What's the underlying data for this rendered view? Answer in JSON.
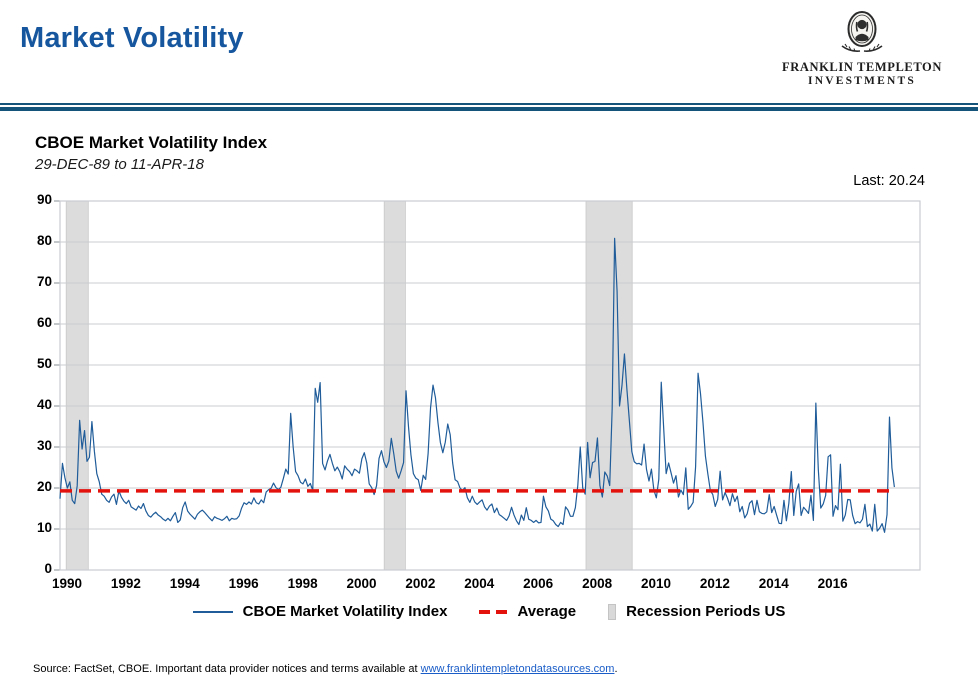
{
  "header": {
    "title": "Market Volatility",
    "logo": {
      "line1": "FRANKLIN TEMPLETON",
      "line2": "INVESTMENTS"
    }
  },
  "chart": {
    "title": "CBOE Market Volatility Index",
    "subtitle": "29-DEC-89 to 11-APR-18",
    "last_label": "Last: 20.24"
  },
  "footer": {
    "source_prefix": "Source: FactSet, CBOE. Important data provider notices and terms available at ",
    "source_link": "www.franklintempletondatasources.com",
    "source_suffix": "."
  },
  "colors": {
    "title_blue": "#15569e",
    "rule_blue": "#14537a",
    "grid_gray": "#c9ccd0",
    "tick_gray": "#8a8f94",
    "link_blue": "#1a5dc8"
  },
  "chart_data": {
    "type": "line",
    "title": "CBOE Market Volatility Index",
    "date_range": "29-DEC-89 to 11-APR-18",
    "last_value": 20.24,
    "ylim": [
      0,
      90
    ],
    "y_ticks": [
      0,
      10,
      20,
      30,
      40,
      50,
      60,
      70,
      80,
      90
    ],
    "x_ticks": [
      1990,
      1992,
      1994,
      1996,
      1998,
      2000,
      2002,
      2004,
      2006,
      2008,
      2010,
      2012,
      2014,
      2016
    ],
    "grid": "horizontal-only",
    "x_start_year": 1989.99,
    "x_step_years": 0.08333,
    "series": [
      {
        "name": "CBOE Market Volatility Index",
        "color": "#1f5c99",
        "values": [
          17.4,
          26.0,
          22.5,
          20.0,
          21.5,
          17.0,
          16.2,
          20.5,
          36.5,
          29.5,
          34.0,
          26.5,
          27.5,
          36.2,
          29.0,
          23.5,
          21.5,
          18.5,
          18.0,
          17.0,
          16.5,
          17.8,
          18.5,
          16.0,
          19.3,
          17.8,
          16.8,
          16.2,
          17.0,
          15.4,
          15.0,
          14.6,
          15.6,
          15.0,
          16.2,
          14.4,
          13.3,
          12.9,
          13.6,
          14.1,
          13.4,
          13.0,
          12.4,
          12.0,
          12.6,
          12.0,
          13.1,
          14.0,
          11.6,
          12.2,
          15.2,
          16.6,
          14.4,
          13.6,
          13.0,
          12.4,
          13.6,
          14.2,
          14.6,
          14.0,
          13.3,
          12.6,
          12.0,
          13.0,
          12.6,
          12.4,
          12.1,
          12.5,
          13.1,
          12.0,
          12.6,
          12.4,
          12.5,
          13.2,
          15.1,
          16.4,
          16.0,
          16.6,
          16.1,
          17.6,
          16.4,
          16.1,
          17.1,
          16.4,
          19.0,
          19.6,
          19.9,
          21.2,
          20.1,
          19.6,
          20.2,
          22.3,
          24.6,
          23.4,
          38.2,
          30.0,
          24.0,
          23.0,
          21.4,
          21.0,
          22.2,
          20.4,
          21.1,
          19.4,
          44.3,
          40.9,
          45.7,
          26.0,
          24.4,
          26.6,
          28.2,
          26.0,
          24.2,
          25.1,
          24.0,
          22.2,
          25.4,
          24.6,
          24.0,
          23.0,
          24.6,
          24.2,
          23.6,
          27.1,
          28.6,
          26.1,
          21.0,
          20.1,
          18.4,
          20.6,
          27.2,
          29.1,
          26.4,
          25.0,
          26.6,
          32.1,
          28.4,
          24.1,
          22.4,
          24.2,
          26.2,
          43.7,
          35.0,
          28.1,
          23.5,
          22.4,
          22.0,
          19.4,
          23.1,
          22.1,
          28.4,
          39.6,
          45.1,
          42.0,
          36.0,
          31.1,
          28.6,
          31.2,
          35.6,
          33.0,
          26.1,
          22.0,
          21.6,
          20.0,
          19.4,
          20.1,
          17.6,
          16.5,
          18.0,
          16.6,
          16.0,
          16.6,
          17.1,
          15.4,
          14.6,
          15.6,
          16.1,
          14.0,
          15.1,
          13.5,
          13.1,
          12.6,
          12.1,
          13.2,
          15.3,
          13.4,
          12.0,
          11.1,
          13.4,
          12.1,
          15.2,
          12.4,
          12.1,
          11.6,
          12.1,
          11.5,
          11.6,
          18.0,
          15.4,
          14.4,
          12.4,
          12.0,
          11.1,
          10.6,
          11.6,
          11.1,
          15.4,
          14.6,
          13.1,
          13.1,
          15.2,
          20.7,
          30.0,
          20.0,
          18.5,
          31.1,
          22.5,
          26.2,
          26.5,
          32.2,
          20.6,
          17.8,
          23.9,
          22.9,
          20.6,
          39.4,
          80.9,
          68.0,
          40.0,
          45.0,
          52.7,
          44.1,
          36.5,
          28.9,
          26.4,
          25.9,
          26.0,
          25.6,
          30.7,
          24.5,
          21.7,
          24.6,
          19.5,
          17.6,
          22.1,
          45.8,
          34.5,
          23.5,
          26.1,
          23.7,
          21.2,
          23.0,
          17.8,
          19.5,
          18.4,
          24.9,
          14.8,
          15.5,
          16.5,
          25.2,
          48.0,
          43.0,
          36.0,
          27.8,
          23.4,
          19.4,
          18.4,
          15.5,
          17.2,
          24.1,
          17.1,
          18.9,
          17.5,
          15.7,
          18.6,
          16.7,
          18.0,
          14.2,
          15.5,
          12.7,
          13.7,
          16.3,
          16.9,
          13.5,
          17.0,
          14.2,
          13.8,
          13.7,
          14.2,
          18.4,
          14.0,
          15.5,
          13.4,
          11.4,
          11.3,
          17.0,
          12.0,
          16.3,
          24.0,
          13.3,
          19.2,
          21.0,
          13.3,
          15.3,
          14.6,
          13.8,
          18.2,
          12.1,
          40.7,
          24.5,
          15.1,
          16.1,
          18.2,
          27.6,
          28.1,
          13.1,
          15.7,
          14.7,
          25.8,
          11.9,
          13.4,
          17.2,
          17.1,
          13.3,
          11.3,
          11.8,
          11.5,
          12.4,
          16.0,
          10.6,
          11.2,
          9.5,
          16.0,
          9.5,
          10.2,
          11.3,
          9.2,
          13.5,
          37.3,
          24.9,
          20.24
        ]
      }
    ],
    "average": {
      "name": "Average",
      "value": 19.3,
      "color": "#e3120c",
      "style": "dashed"
    },
    "recession_bands": [
      {
        "start": 1990.2,
        "end": 1990.95
      },
      {
        "start": 2001.0,
        "end": 2001.72
      },
      {
        "start": 2007.85,
        "end": 2009.42
      }
    ],
    "band_color": "#dcdcdc",
    "legend": [
      {
        "label": "CBOE Market Volatility Index",
        "swatch": "line"
      },
      {
        "label": "Average",
        "swatch": "dashed"
      },
      {
        "label": "Recession Periods US",
        "swatch": "band"
      }
    ]
  }
}
